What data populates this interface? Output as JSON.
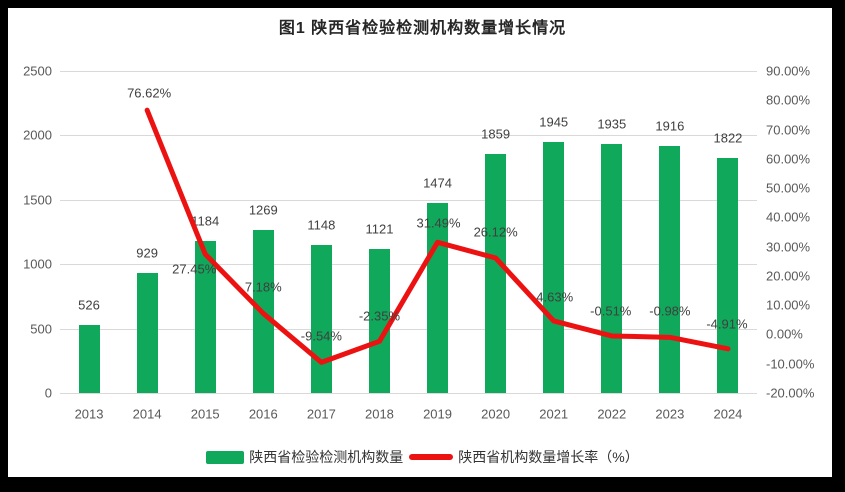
{
  "title": "图1 陕西省检验检测机构数量增长情况",
  "colors": {
    "bar": "#10a85a",
    "line": "#ec1212",
    "grid": "#d9d9d9",
    "axis_text": "#595959",
    "data_label_text": "#404040",
    "title_text": "#262626",
    "chart_background": "#ffffff",
    "frame_background": "#000000"
  },
  "legend": [
    {
      "swatch": "bar-swatch",
      "label": "陕西省检验检测机构数量"
    },
    {
      "swatch": "line-swatch",
      "label": "陕西省机构数量增长率（%）"
    }
  ],
  "chart_data": {
    "type": "bar+line combo",
    "title": "图1 陕西省检验检测机构数量增长情况",
    "categories": [
      "2013",
      "2014",
      "2015",
      "2016",
      "2017",
      "2018",
      "2019",
      "2020",
      "2021",
      "2022",
      "2023",
      "2024"
    ],
    "series": [
      {
        "name": "陕西省检验检测机构数量",
        "type": "bar",
        "axis": "left",
        "values": [
          526,
          929,
          1184,
          1269,
          1148,
          1121,
          1474,
          1859,
          1945,
          1935,
          1916,
          1822
        ],
        "data_labels": [
          "526",
          "929",
          "1184",
          "1269",
          "1148",
          "1121",
          "1474",
          "1859",
          "1945",
          "1935",
          "1916",
          "1822"
        ]
      },
      {
        "name": "陕西省机构数量增长率（%）",
        "type": "line",
        "axis": "right",
        "values": [
          null,
          76.62,
          27.45,
          7.18,
          -9.54,
          -2.35,
          31.49,
          26.12,
          4.63,
          -0.51,
          -0.98,
          -4.91
        ],
        "data_labels": [
          null,
          "76.62%",
          "27.45%",
          "7.18%",
          "-9.54%",
          "-2.35%",
          "31.49%",
          "26.12%",
          "4.63%",
          "-0.51%",
          "-0.98%",
          "-4.91%"
        ]
      }
    ],
    "left_axis": {
      "min": 0,
      "max": 2500,
      "step": 500,
      "ticks_top_to_bottom": [
        "2500",
        "2000",
        "1500",
        "1000",
        "500",
        "0"
      ]
    },
    "right_axis": {
      "min": -20,
      "max": 90,
      "step": 10,
      "ticks_top_to_bottom": [
        "90.00%",
        "80.00%",
        "70.00%",
        "60.00%",
        "50.00%",
        "40.00%",
        "30.00%",
        "20.00%",
        "10.00%",
        "0.00%",
        "-10.00%",
        "-20.00%"
      ]
    },
    "grid": "horizontal gridlines at left-axis ticks",
    "legend_position": "bottom-center"
  }
}
